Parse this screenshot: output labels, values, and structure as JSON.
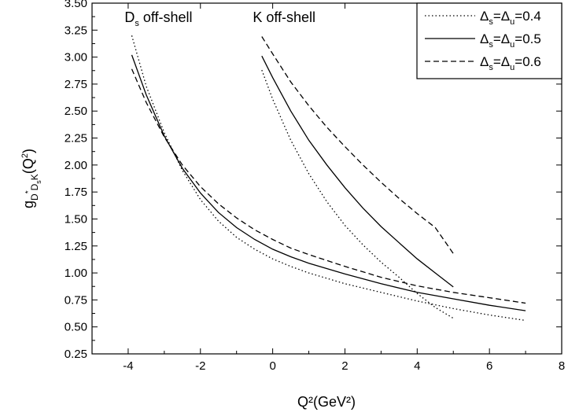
{
  "chart_data": {
    "type": "line",
    "xlabel": "Q²(GeV²)",
    "ylabel": "g_{D*DsK}(Q²)",
    "xlim": [
      -5,
      8
    ],
    "ylim": [
      0.25,
      3.5
    ],
    "x_ticks": [
      "-4",
      "-2",
      "0",
      "2",
      "4",
      "6",
      "8"
    ],
    "y_ticks": [
      "0.25",
      "0.50",
      "0.75",
      "1.00",
      "1.25",
      "1.50",
      "1.75",
      "2.00",
      "2.25",
      "2.50",
      "2.75",
      "3.00",
      "3.25",
      "3.50"
    ],
    "grid": false,
    "legend_position": "top-right",
    "legend": [
      {
        "label_prefix": "Δ",
        "s": "s",
        "eq": "=Δ",
        "u": "u",
        "value": "=0.4",
        "style": "dotted"
      },
      {
        "label_prefix": "Δ",
        "s": "s",
        "eq": "=Δ",
        "u": "u",
        "value": "=0.5",
        "style": "solid"
      },
      {
        "label_prefix": "Δ",
        "s": "s",
        "eq": "=Δ",
        "u": "u",
        "value": "=0.6",
        "style": "dashed"
      }
    ],
    "annotations": [
      {
        "main": "D",
        "sub": "s",
        "rest": " off-shell",
        "x": -4.1,
        "y": 3.37
      },
      {
        "main": "K off-shell",
        "sub": "",
        "rest": "",
        "x": -0.55,
        "y": 3.37
      }
    ],
    "series": [
      {
        "group": "Ds off-shell",
        "style": "dotted",
        "x": [
          -3.9,
          -3.5,
          -3.0,
          -2.5,
          -2.0,
          -1.5,
          -1.0,
          -0.5,
          0,
          0.5,
          1,
          2,
          3,
          4,
          5,
          6,
          7
        ],
        "y": [
          3.2,
          2.73,
          2.3,
          1.95,
          1.68,
          1.48,
          1.33,
          1.22,
          1.13,
          1.06,
          1.0,
          0.9,
          0.82,
          0.74,
          0.67,
          0.61,
          0.56
        ]
      },
      {
        "group": "Ds off-shell",
        "style": "solid",
        "x": [
          -3.9,
          -3.5,
          -3.0,
          -2.5,
          -2.0,
          -1.5,
          -1.0,
          -0.5,
          0,
          0.5,
          1,
          2,
          3,
          4,
          5,
          6,
          7
        ],
        "y": [
          3.02,
          2.65,
          2.27,
          1.97,
          1.74,
          1.56,
          1.42,
          1.31,
          1.22,
          1.15,
          1.09,
          0.99,
          0.9,
          0.82,
          0.76,
          0.7,
          0.65
        ]
      },
      {
        "group": "Ds off-shell",
        "style": "dashed",
        "x": [
          -3.9,
          -3.5,
          -3.0,
          -2.5,
          -2.0,
          -1.5,
          -1.0,
          -0.5,
          0,
          0.5,
          1,
          2,
          3,
          4,
          5,
          6,
          7
        ],
        "y": [
          2.89,
          2.58,
          2.26,
          2.0,
          1.8,
          1.64,
          1.51,
          1.4,
          1.31,
          1.23,
          1.17,
          1.06,
          0.96,
          0.88,
          0.82,
          0.77,
          0.72
        ]
      },
      {
        "group": "K off-shell",
        "style": "dotted",
        "x": [
          -0.3,
          0.0,
          0.5,
          1.0,
          1.5,
          2.0,
          2.5,
          3.0,
          3.5,
          4.0,
          4.5,
          5.0
        ],
        "y": [
          2.88,
          2.61,
          2.23,
          1.92,
          1.66,
          1.44,
          1.26,
          1.1,
          0.96,
          0.81,
          0.68,
          0.58
        ]
      },
      {
        "group": "K off-shell",
        "style": "solid",
        "x": [
          -0.3,
          0.0,
          0.5,
          1.0,
          1.5,
          2.0,
          2.5,
          3.0,
          3.5,
          4.0,
          4.5,
          5.0
        ],
        "y": [
          3.01,
          2.81,
          2.5,
          2.23,
          2.0,
          1.79,
          1.6,
          1.43,
          1.28,
          1.13,
          1.0,
          0.87
        ]
      },
      {
        "group": "K off-shell",
        "style": "dashed",
        "x": [
          -0.3,
          0.0,
          0.5,
          1.0,
          1.5,
          2.0,
          2.5,
          3.0,
          3.5,
          4.0,
          4.5,
          5.0
        ],
        "y": [
          3.19,
          3.03,
          2.77,
          2.55,
          2.35,
          2.17,
          2.0,
          1.84,
          1.69,
          1.55,
          1.42,
          1.18
        ]
      }
    ]
  }
}
